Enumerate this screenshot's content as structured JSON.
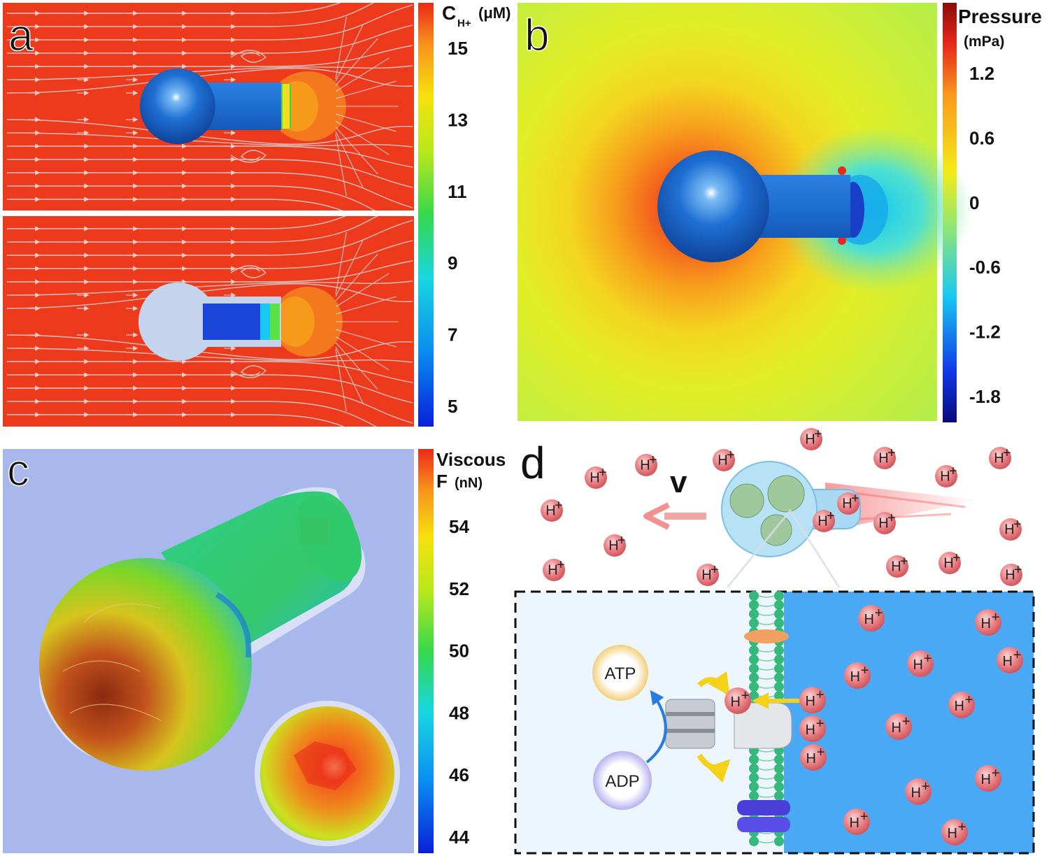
{
  "panels": {
    "a": {
      "letter": "a",
      "colorbar": {
        "title_main": "C",
        "title_sub": "H+",
        "title_unit": "(μM)",
        "ticks": [
          "15",
          "13",
          "11",
          "9",
          "7",
          "5"
        ]
      }
    },
    "b": {
      "letter": "b",
      "colorbar": {
        "title_main": "Pressure",
        "title_unit": "(mPa)",
        "ticks": [
          "1.2",
          "0.6",
          "0",
          "-0.6",
          "-1.2",
          "-1.8"
        ]
      }
    },
    "c": {
      "letter": "c",
      "colorbar": {
        "title_main": "Viscous",
        "title_line2": "F",
        "title_unit": "(nN)",
        "ticks": [
          "54",
          "52",
          "50",
          "48",
          "46",
          "44"
        ]
      }
    },
    "d": {
      "letter": "d",
      "velocity_label": "v",
      "ion_label": "H",
      "ion_charge": "+",
      "atp_label": "ATP",
      "adp_label": "ADP"
    }
  },
  "colors": {
    "red_bg": "#ee3a1c",
    "blue_motor": "#1e6fd0",
    "viscous_bg": "#a9b8ec",
    "inset_blue": "#4aa9f5",
    "inset_light": "#eef6fd",
    "ion_fill": "#e9737a"
  }
}
